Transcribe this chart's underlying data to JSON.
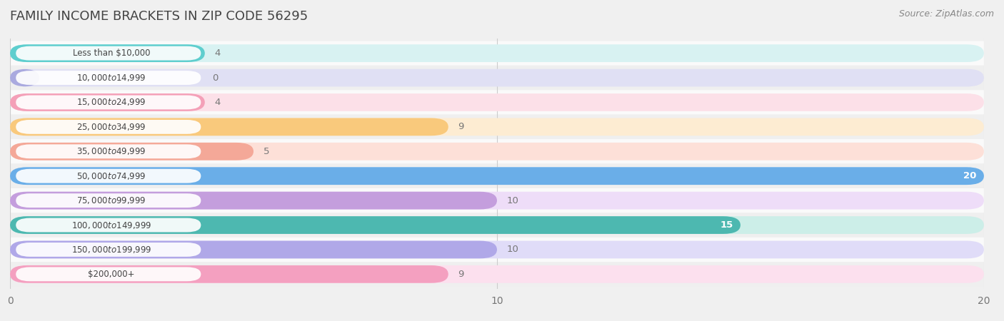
{
  "title": "FAMILY INCOME BRACKETS IN ZIP CODE 56295",
  "source": "Source: ZipAtlas.com",
  "categories": [
    "Less than $10,000",
    "$10,000 to $14,999",
    "$15,000 to $24,999",
    "$25,000 to $34,999",
    "$35,000 to $49,999",
    "$50,000 to $74,999",
    "$75,000 to $99,999",
    "$100,000 to $149,999",
    "$150,000 to $199,999",
    "$200,000+"
  ],
  "values": [
    4,
    0,
    4,
    9,
    5,
    20,
    10,
    15,
    10,
    9
  ],
  "bar_colors": [
    "#5ecece",
    "#aaaadf",
    "#f4a0b8",
    "#f9c97c",
    "#f4a898",
    "#6aaee8",
    "#c49edd",
    "#4db8b0",
    "#b0a8e8",
    "#f4a0c0"
  ],
  "bar_bg_colors": [
    "#d8f2f2",
    "#e0e0f4",
    "#fce0e8",
    "#fdecd2",
    "#fde0d8",
    "#d8eaf8",
    "#eeddf8",
    "#cceee8",
    "#e0dcf8",
    "#fce0ee"
  ],
  "xlim": [
    0,
    20
  ],
  "xticks": [
    0,
    10,
    20
  ],
  "bar_height": 0.72,
  "page_bg": "#f0f0f0",
  "row_even_bg": "#fafafa",
  "row_odd_bg": "#efefef",
  "label_color": "#444444",
  "title_color": "#444444",
  "title_fontsize": 13,
  "value_color_inside": "#ffffff",
  "value_color_outside": "#777777",
  "source_color": "#888888"
}
